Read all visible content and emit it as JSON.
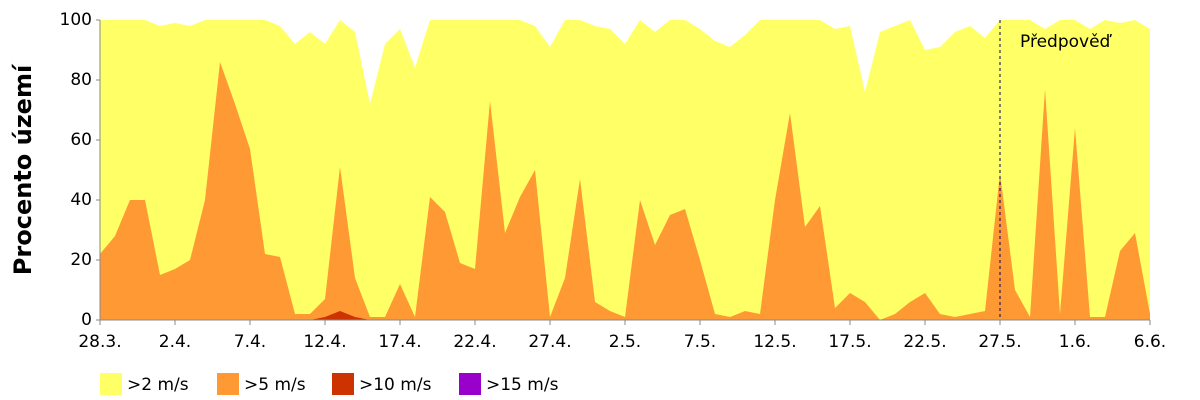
{
  "chart_data": {
    "type": "area",
    "y_label": "Procento území",
    "categories": [
      "28.3.",
      null,
      null,
      null,
      null,
      "2.4.",
      null,
      null,
      null,
      null,
      "7.4.",
      null,
      null,
      null,
      null,
      "12.4.",
      null,
      null,
      null,
      null,
      "17.4.",
      null,
      null,
      null,
      null,
      "22.4.",
      null,
      null,
      null,
      null,
      "27.4.",
      null,
      null,
      null,
      null,
      "2.5.",
      null,
      null,
      null,
      null,
      "7.5.",
      null,
      null,
      null,
      null,
      "12.5.",
      null,
      null,
      null,
      null,
      "17.5.",
      null,
      null,
      null,
      null,
      "22.5.",
      null,
      null,
      null,
      null,
      "27.5.",
      null,
      null,
      null,
      null,
      "1.6.",
      null,
      null,
      null,
      null,
      "6.6."
    ],
    "series": [
      {
        "name": ">2 m/s",
        "color": "#ffff66",
        "values": [
          100,
          100,
          100,
          100,
          98,
          99,
          98,
          100,
          100,
          100,
          100,
          100,
          98,
          92,
          96,
          92,
          100,
          96,
          72,
          92,
          97,
          84,
          100,
          100,
          100,
          100,
          100,
          100,
          100,
          98,
          91,
          100,
          100,
          98,
          97,
          92,
          100,
          96,
          100,
          100,
          97,
          93,
          91,
          95,
          100,
          100,
          100,
          100,
          100,
          97,
          98,
          76,
          96,
          98,
          100,
          90,
          91,
          96,
          98,
          94,
          100,
          100,
          100,
          97,
          100,
          100,
          97,
          100,
          99,
          100,
          97
        ]
      },
      {
        "name": ">5 m/s",
        "color": "#ff9933",
        "values": [
          22,
          28,
          40,
          40,
          15,
          17,
          20,
          40,
          86,
          72,
          57,
          22,
          21,
          2,
          2,
          7,
          51,
          14,
          1,
          1,
          12,
          1,
          41,
          36,
          19,
          17,
          73,
          29,
          41,
          50,
          1,
          14,
          47,
          6,
          3,
          1,
          40,
          25,
          35,
          37,
          20,
          2,
          1,
          3,
          2,
          40,
          69,
          31,
          38,
          4,
          9,
          6,
          0,
          2,
          6,
          9,
          2,
          1,
          2,
          3,
          49,
          10,
          1,
          77,
          2,
          64,
          1,
          1,
          23,
          29,
          2
        ]
      },
      {
        "name": ">10 m/s",
        "color": "#cc3300",
        "values": [
          0,
          0,
          0,
          0,
          0,
          0,
          0,
          0,
          0,
          0,
          0,
          0,
          0,
          0,
          0,
          1,
          3,
          1,
          0,
          0,
          0,
          0,
          0,
          0,
          0,
          0,
          0,
          0,
          0,
          0,
          0,
          0,
          0,
          0,
          0,
          0,
          0,
          0,
          0,
          0,
          0,
          0,
          0,
          0,
          0,
          0,
          0,
          0,
          0,
          0,
          0,
          0,
          0,
          0,
          0,
          0,
          0,
          0,
          0,
          0,
          0,
          0,
          0,
          0,
          0,
          0,
          0,
          0,
          0,
          0,
          0
        ]
      },
      {
        "name": ">15 m/s",
        "color": "#9900cc",
        "values": [
          0,
          0,
          0,
          0,
          0,
          0,
          0,
          0,
          0,
          0,
          0,
          0,
          0,
          0,
          0,
          0,
          0,
          0,
          0,
          0,
          0,
          0,
          0,
          0,
          0,
          0,
          0,
          0,
          0,
          0,
          0,
          0,
          0,
          0,
          0,
          0,
          0,
          0,
          0,
          0,
          0,
          0,
          0,
          0,
          0,
          0,
          0,
          0,
          0,
          0,
          0,
          0,
          0,
          0,
          0,
          0,
          0,
          0,
          0,
          0,
          0,
          0,
          0,
          0,
          0,
          0,
          0,
          0,
          0,
          0,
          0
        ]
      }
    ],
    "ylim": [
      0,
      100
    ],
    "yticks": [
      0,
      20,
      40,
      60,
      80,
      100
    ],
    "grid": false,
    "annotation": {
      "text": "Předpověď",
      "x": "27.5."
    }
  }
}
